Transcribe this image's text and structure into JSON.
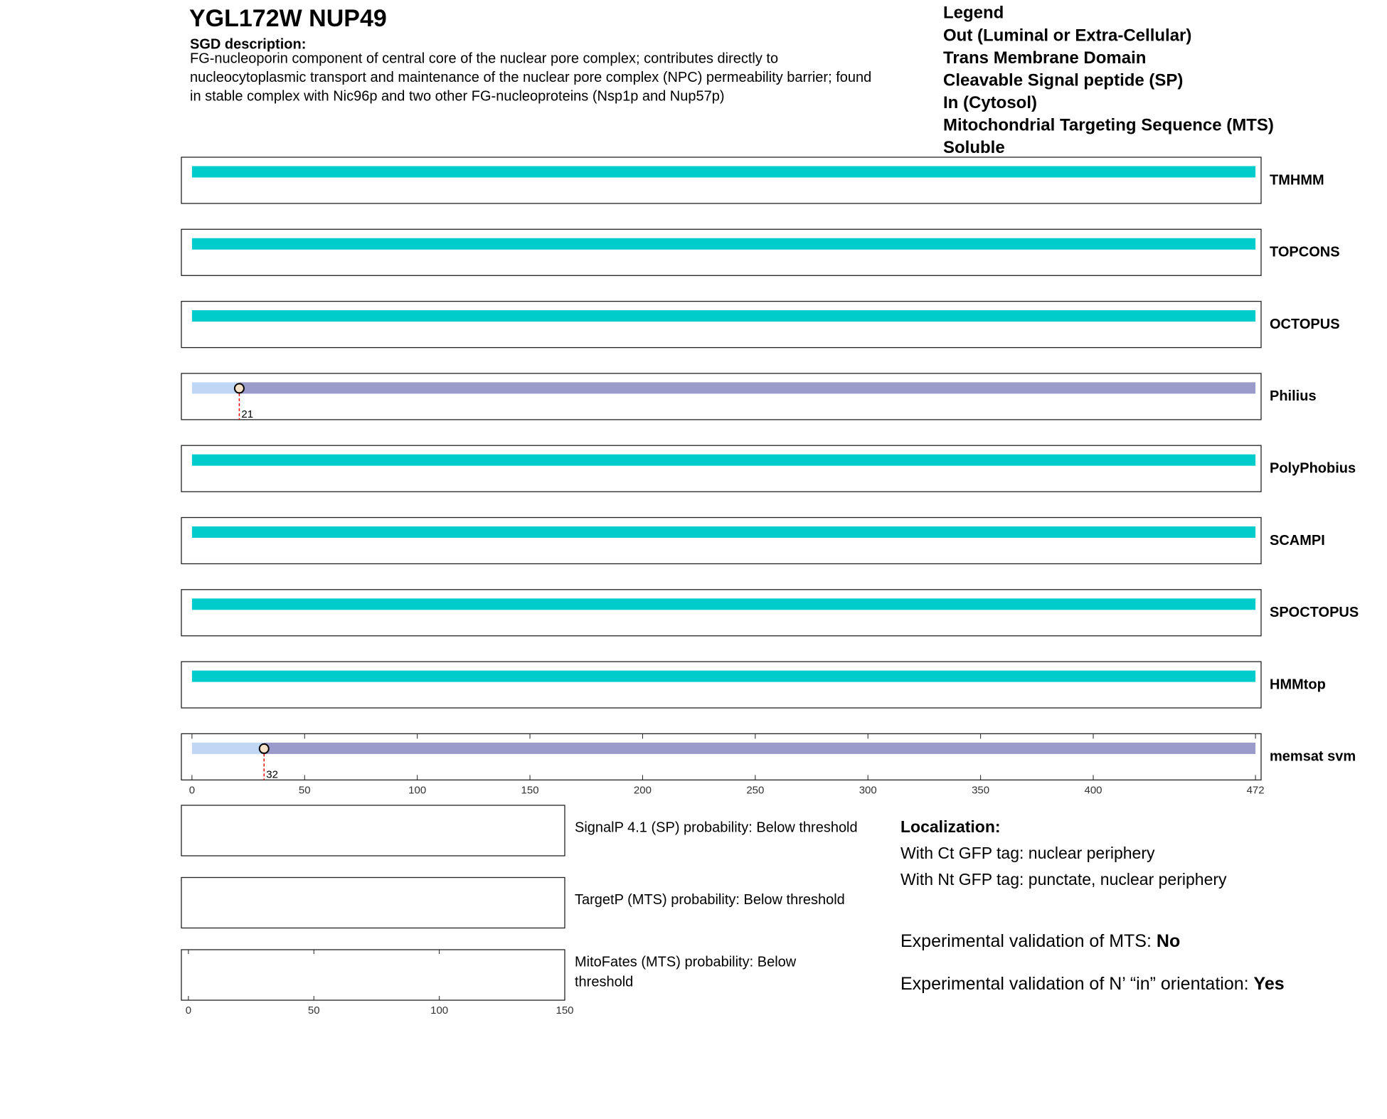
{
  "header": {
    "title": "YGL172W  NUP49",
    "description_label": "SGD description:",
    "description": [
      "FG-nucleoporin component of central core of the nuclear pore complex; contributes directly to",
      "nucleocytoplasmic transport and maintenance of the nuclear pore complex (NPC) permeability barrier; found",
      "in stable complex with Nic96p and two other FG-nucleoproteins (Nsp1p and Nup57p)"
    ]
  },
  "legend": {
    "title": "Legend",
    "items": [
      {
        "name": "Out (Luminal or Extra-Cellular)",
        "color": "#9b9bcb"
      },
      {
        "name": "Trans Membrane Domain",
        "color": "#8fd19e"
      },
      {
        "name": "Cleavable Signal peptide (SP)",
        "color": "#bfd7f5"
      },
      {
        "name": "In (Cytosol)",
        "color": "#f0a8a8"
      },
      {
        "name": "Mitochondrial Targeting Sequence (MTS)",
        "color": "#e8b030"
      },
      {
        "name": "Soluble",
        "color": "#00cccc"
      }
    ]
  },
  "chart_data": [
    {
      "type": "track",
      "xlim": [
        -4.7,
        474.5
      ],
      "xticks": [
        0,
        50,
        100,
        150,
        200,
        250,
        300,
        350,
        400,
        472
      ],
      "tracks": [
        {
          "name": "TMHMM",
          "segments": [
            {
              "start": 0,
              "end": 472,
              "class": "Soluble"
            }
          ]
        },
        {
          "name": "TOPCONS",
          "segments": [
            {
              "start": 0,
              "end": 472,
              "class": "Soluble"
            }
          ]
        },
        {
          "name": "OCTOPUS",
          "segments": [
            {
              "start": 0,
              "end": 472,
              "class": "Soluble"
            }
          ]
        },
        {
          "name": "Philius",
          "segments": [
            {
              "start": 0,
              "end": 21,
              "class": "Cleavable Signal peptide (SP)"
            },
            {
              "start": 21,
              "end": 472,
              "class": "Out (Luminal or Extra-Cellular)"
            }
          ],
          "cleavage": 21
        },
        {
          "name": "PolyPhobius",
          "segments": [
            {
              "start": 0,
              "end": 472,
              "class": "Soluble"
            }
          ]
        },
        {
          "name": "SCAMPI",
          "segments": [
            {
              "start": 0,
              "end": 472,
              "class": "Soluble"
            }
          ]
        },
        {
          "name": "SPOCTOPUS",
          "segments": [
            {
              "start": 0,
              "end": 472,
              "class": "Soluble"
            }
          ]
        },
        {
          "name": "HMMtop",
          "segments": [
            {
              "start": 0,
              "end": 472,
              "class": "Soluble"
            }
          ]
        },
        {
          "name": "memsat svm",
          "segments": [
            {
              "start": 0,
              "end": 32,
              "class": "Cleavable Signal peptide (SP)"
            },
            {
              "start": 32,
              "end": 472,
              "class": "Out (Luminal or Extra-Cellular)"
            }
          ],
          "cleavage": 32
        }
      ]
    },
    {
      "type": "probability",
      "xlim": [
        -2.8,
        150
      ],
      "xticks": [
        0,
        50,
        100,
        150
      ],
      "panels": [
        {
          "label": [
            "SignalP 4.1 (SP) probability: Below threshold"
          ]
        },
        {
          "label": [
            "TargetP (MTS) probability: Below threshold"
          ]
        },
        {
          "label": [
            "MitoFates (MTS) probability: Below",
            "threshold"
          ]
        }
      ]
    }
  ],
  "localization": {
    "title": "Localization:",
    "lines": [
      "With Ct GFP tag: nuclear periphery",
      "With Nt GFP tag: punctate, nuclear periphery"
    ]
  },
  "validation": [
    {
      "label": "Experimental validation of MTS: ",
      "value": "No"
    },
    {
      "label": "Experimental validation of N’ “in” orientation: ",
      "value": "Yes"
    }
  ]
}
